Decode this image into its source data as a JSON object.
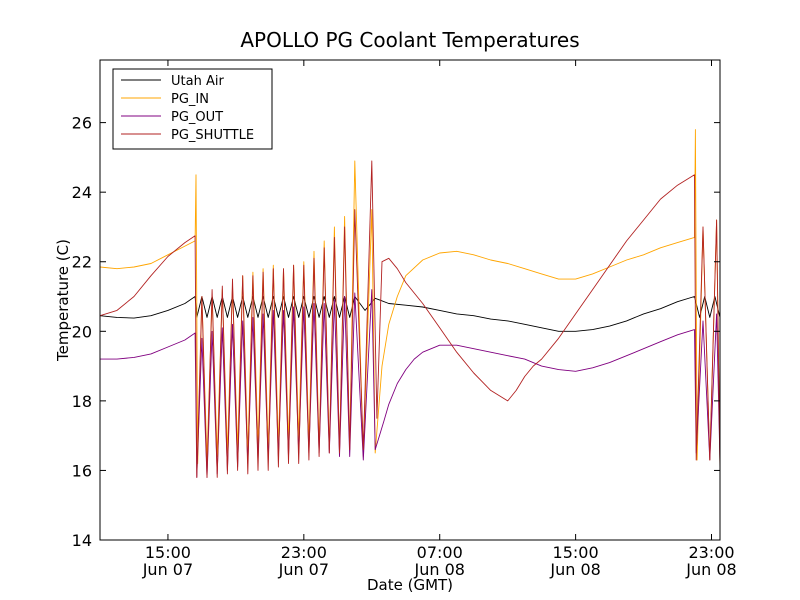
{
  "chart_data": {
    "type": "line",
    "title": "APOLLO PG Coolant Temperatures",
    "xlabel": "Date (GMT)",
    "ylabel": "Temperature (C)",
    "x_unit": "hours since Jun 07 11:00 GMT",
    "xlim": [
      0,
      36.5
    ],
    "ylim": [
      14,
      27.8
    ],
    "yticks": [
      14,
      16,
      18,
      20,
      22,
      24,
      26
    ],
    "xticks": [
      {
        "x": 4,
        "line1": "15:00",
        "line2": "Jun 07"
      },
      {
        "x": 12,
        "line1": "23:00",
        "line2": "Jun 07"
      },
      {
        "x": 20,
        "line1": "07:00",
        "line2": "Jun 08"
      },
      {
        "x": 28,
        "line1": "15:00",
        "line2": "Jun 08"
      },
      {
        "x": 36,
        "line1": "23:00",
        "line2": "Jun 08"
      }
    ],
    "legend_position": "top-left",
    "series": [
      {
        "name": "Utah Air",
        "color": "#000000",
        "x": [
          0,
          1,
          2,
          3,
          4,
          5,
          5.6,
          5.7,
          6,
          6.3,
          6.6,
          6.9,
          7.2,
          7.5,
          7.8,
          8.1,
          8.4,
          8.7,
          9,
          9.3,
          9.6,
          9.9,
          10.2,
          10.5,
          10.8,
          11.1,
          11.4,
          11.7,
          12,
          12.3,
          12.6,
          12.9,
          13.2,
          13.5,
          13.8,
          14.1,
          14.4,
          14.7,
          15,
          15.6,
          16.2,
          17,
          18,
          19,
          20,
          21,
          22,
          23,
          24,
          25,
          26,
          27,
          28,
          29,
          30,
          31,
          32,
          33,
          34,
          35,
          35.3,
          35.6,
          35.9,
          36.2,
          36.5
        ],
        "values": [
          20.45,
          20.4,
          20.38,
          20.45,
          20.6,
          20.8,
          21.0,
          20.4,
          21.0,
          20.4,
          21.0,
          20.4,
          21.0,
          20.4,
          21.0,
          20.4,
          21.0,
          20.4,
          21.0,
          20.4,
          21.0,
          20.4,
          21.0,
          20.4,
          21.0,
          20.4,
          21.0,
          20.4,
          21.0,
          20.4,
          21.0,
          20.4,
          21.0,
          20.4,
          21.0,
          20.4,
          21.0,
          20.4,
          21.0,
          20.6,
          20.95,
          20.8,
          20.75,
          20.7,
          20.6,
          20.5,
          20.45,
          20.35,
          20.3,
          20.2,
          20.1,
          20.0,
          20.0,
          20.05,
          20.15,
          20.3,
          20.5,
          20.65,
          20.85,
          21.0,
          20.4,
          21.0,
          20.4,
          21.0,
          20.4
        ]
      },
      {
        "name": "PG_IN",
        "color": "#ffa500",
        "x": [
          0,
          1,
          2,
          3,
          4,
          5,
          5.6,
          5.65,
          5.75,
          6,
          6.3,
          6.6,
          6.9,
          7.2,
          7.5,
          7.8,
          8.1,
          8.4,
          8.7,
          9,
          9.3,
          9.6,
          9.9,
          10.2,
          10.5,
          10.8,
          11.1,
          11.4,
          11.7,
          12,
          12.3,
          12.6,
          12.9,
          13.2,
          13.5,
          13.8,
          14.1,
          14.4,
          14.7,
          15,
          15.5,
          16,
          16.2,
          16.6,
          17,
          17.5,
          18,
          19,
          20,
          21,
          22,
          23,
          24,
          25,
          26,
          27,
          28,
          29,
          30,
          31,
          32,
          33,
          34,
          35,
          35.05,
          35.15,
          35.5,
          35.9,
          36.3,
          36.5
        ],
        "values": [
          21.85,
          21.8,
          21.85,
          21.95,
          22.2,
          22.45,
          22.6,
          24.5,
          16.2,
          21.0,
          16.3,
          21.0,
          16.4,
          21.2,
          16.5,
          21.3,
          16.6,
          21.6,
          16.5,
          21.7,
          16.7,
          21.8,
          16.6,
          21.9,
          16.7,
          21.8,
          16.8,
          21.9,
          16.9,
          22.0,
          16.8,
          22.3,
          16.7,
          22.6,
          16.6,
          23.0,
          16.5,
          23.3,
          16.6,
          24.9,
          16.4,
          23.5,
          16.5,
          19.0,
          20.2,
          21.0,
          21.6,
          22.05,
          22.25,
          22.3,
          22.2,
          22.05,
          21.95,
          21.8,
          21.65,
          21.5,
          21.5,
          21.65,
          21.85,
          22.05,
          22.2,
          22.4,
          22.55,
          22.7,
          25.8,
          16.3,
          23.0,
          16.3,
          23.2,
          16.1
        ]
      },
      {
        "name": "PG_OUT",
        "color": "#800080",
        "x": [
          0,
          1,
          2,
          3,
          4,
          5,
          5.6,
          5.7,
          6,
          6.3,
          6.6,
          6.9,
          7.2,
          7.5,
          7.8,
          8.1,
          8.4,
          8.7,
          9,
          9.3,
          9.6,
          9.9,
          10.2,
          10.5,
          10.8,
          11.1,
          11.4,
          11.7,
          12,
          12.3,
          12.6,
          12.9,
          13.2,
          13.5,
          13.8,
          14.1,
          14.4,
          14.7,
          15,
          15.5,
          16,
          16.2,
          16.7,
          17,
          17.5,
          18,
          18.5,
          19,
          20,
          21,
          22,
          23,
          24,
          25,
          26,
          27,
          28,
          29,
          30,
          31,
          32,
          33,
          34,
          35,
          35.1,
          35.5,
          35.9,
          36.3,
          36.5
        ],
        "values": [
          19.2,
          19.2,
          19.25,
          19.35,
          19.55,
          19.75,
          19.95,
          15.8,
          19.8,
          15.8,
          20.0,
          15.9,
          20.1,
          16.0,
          20.2,
          16.1,
          20.3,
          16.2,
          20.4,
          16.3,
          20.5,
          16.3,
          20.6,
          16.4,
          20.6,
          16.4,
          20.7,
          16.5,
          20.7,
          16.5,
          20.8,
          16.5,
          20.8,
          16.5,
          20.9,
          16.4,
          21.0,
          16.4,
          21.1,
          16.3,
          21.2,
          16.6,
          17.4,
          17.9,
          18.5,
          18.9,
          19.2,
          19.4,
          19.6,
          19.6,
          19.5,
          19.4,
          19.3,
          19.2,
          19.0,
          18.9,
          18.85,
          18.95,
          19.1,
          19.3,
          19.5,
          19.7,
          19.9,
          20.05,
          16.5,
          20.3,
          16.3,
          20.5,
          16.2
        ]
      },
      {
        "name": "PG_SHUTTLE",
        "color": "#b22222",
        "x": [
          0,
          1,
          2,
          3,
          4,
          5,
          5.6,
          5.7,
          6,
          6.3,
          6.6,
          6.9,
          7.2,
          7.5,
          7.8,
          8.1,
          8.4,
          8.7,
          9,
          9.3,
          9.6,
          9.9,
          10.2,
          10.5,
          10.8,
          11.1,
          11.4,
          11.7,
          12,
          12.3,
          12.6,
          12.9,
          13.2,
          13.5,
          13.8,
          14.1,
          14.4,
          14.7,
          15,
          15.5,
          16,
          16.3,
          16.6,
          17,
          17.5,
          18,
          19,
          20,
          21,
          22,
          23,
          24,
          24.5,
          25,
          25.5,
          26,
          27,
          28,
          29,
          30,
          31,
          32,
          33,
          34,
          35,
          35.1,
          35.5,
          35.9,
          36.3,
          36.5
        ],
        "values": [
          20.45,
          20.6,
          21.0,
          21.6,
          22.15,
          22.55,
          22.75,
          15.8,
          21.0,
          15.8,
          21.2,
          15.8,
          21.3,
          15.9,
          21.5,
          16.0,
          21.6,
          15.9,
          21.6,
          16.0,
          21.7,
          16.0,
          21.8,
          16.1,
          21.8,
          16.2,
          21.9,
          16.2,
          21.9,
          16.3,
          22.1,
          16.4,
          22.4,
          16.5,
          22.7,
          16.5,
          23.0,
          16.6,
          23.5,
          16.6,
          24.9,
          17.5,
          22.0,
          22.1,
          21.8,
          21.4,
          20.8,
          20.1,
          19.4,
          18.8,
          18.3,
          18.0,
          18.3,
          18.7,
          19.0,
          19.2,
          19.8,
          20.5,
          21.2,
          21.9,
          22.6,
          23.2,
          23.8,
          24.2,
          24.5,
          16.3,
          23.0,
          16.3,
          23.2,
          16.0
        ]
      }
    ]
  }
}
